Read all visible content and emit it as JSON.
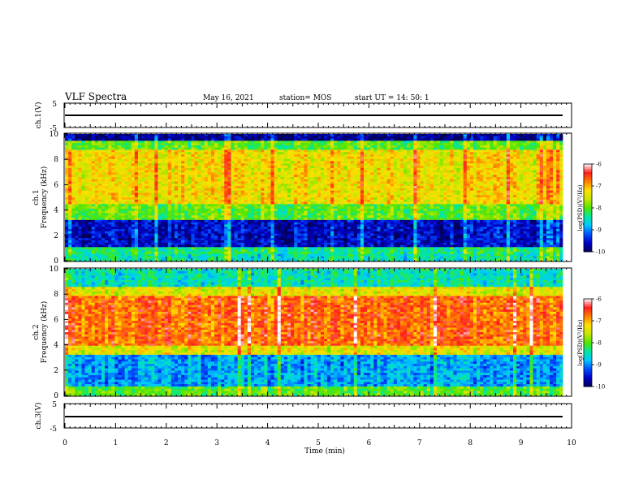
{
  "header": {
    "title": "VLF Spectra",
    "date": "May 16, 2021",
    "station": "station= MOS",
    "start": "start UT = 14: 50: 1"
  },
  "chart_data": [
    {
      "type": "line",
      "panel": "ch.1 waveform",
      "ylabel": "ch.1(V)",
      "ylim": [
        -5,
        5
      ],
      "y_ticks": [
        "5",
        "-5"
      ],
      "series": [
        {
          "values": [
            0,
            0
          ]
        }
      ],
      "x": [
        0,
        9.83
      ]
    },
    {
      "type": "heatmap",
      "panel": "ch.1 spectrogram",
      "ylabel": "ch.1\nFrequency (kHz)",
      "ylim": [
        0,
        10
      ],
      "y_ticks": [
        "0",
        "2",
        "4",
        "6",
        "8",
        "10"
      ],
      "xlim": [
        0,
        10
      ],
      "data_end_min": 9.83,
      "colorbar": {
        "label": "log(PSD)(V²/Hz)",
        "range": [
          -10,
          -6
        ],
        "ticks": [
          "-6",
          "-7",
          "-8",
          "-9",
          "-10"
        ]
      },
      "bands_khz_logpsd": [
        {
          "from": 0,
          "to": 0.5,
          "value": -8.5
        },
        {
          "from": 0.5,
          "to": 1,
          "value": -8.3
        },
        {
          "from": 1,
          "to": 3.3,
          "value": -9.6
        },
        {
          "from": 3.3,
          "to": 4.5,
          "value": -8.0
        },
        {
          "from": 4.5,
          "to": 8.7,
          "value": -7.3
        },
        {
          "from": 8.7,
          "to": 9.5,
          "value": -8.0
        },
        {
          "from": 9.5,
          "to": 10,
          "value": -9.8
        }
      ]
    },
    {
      "type": "heatmap",
      "panel": "ch.2 spectrogram",
      "ylabel": "ch.2\nFrequency (kHz)",
      "ylim": [
        0,
        10
      ],
      "y_ticks": [
        "0",
        "2",
        "4",
        "6",
        "8",
        "10"
      ],
      "xlim": [
        0,
        10
      ],
      "data_end_min": 9.83,
      "colorbar": {
        "label": "log(PSD)(V²/Hz)",
        "range": [
          -10,
          -6
        ],
        "ticks": [
          "-6",
          "-7",
          "-8",
          "-9",
          "-10"
        ]
      },
      "bands_khz_logpsd": [
        {
          "from": 0,
          "to": 0.7,
          "value": -8.0
        },
        {
          "from": 0.7,
          "to": 3.2,
          "value": -8.9
        },
        {
          "from": 3.2,
          "to": 4.0,
          "value": -7.4
        },
        {
          "from": 4.0,
          "to": 7.8,
          "value": -6.7
        },
        {
          "from": 7.8,
          "to": 8.6,
          "value": -7.4
        },
        {
          "from": 8.6,
          "to": 10,
          "value": -8.5
        }
      ]
    },
    {
      "type": "line",
      "panel": "ch.3 waveform",
      "ylabel": "ch.3(V)",
      "ylim": [
        -5,
        5
      ],
      "y_ticks": [
        "5",
        "-5"
      ],
      "series": [
        {
          "values": [
            0,
            0
          ]
        }
      ],
      "x": [
        0,
        9.83
      ]
    }
  ],
  "x_axis": {
    "label": "Time (min)",
    "ticks": [
      "0",
      "1",
      "2",
      "3",
      "4",
      "5",
      "6",
      "7",
      "8",
      "9",
      "10"
    ],
    "xlim": [
      0,
      10
    ]
  },
  "colors": {
    "colormap": [
      "#00005a",
      "#0000c8",
      "#0050ff",
      "#00c8ff",
      "#00e8a0",
      "#50e600",
      "#c8e600",
      "#ffe000",
      "#ff8000",
      "#ff1e1e",
      "#ffffff"
    ]
  }
}
